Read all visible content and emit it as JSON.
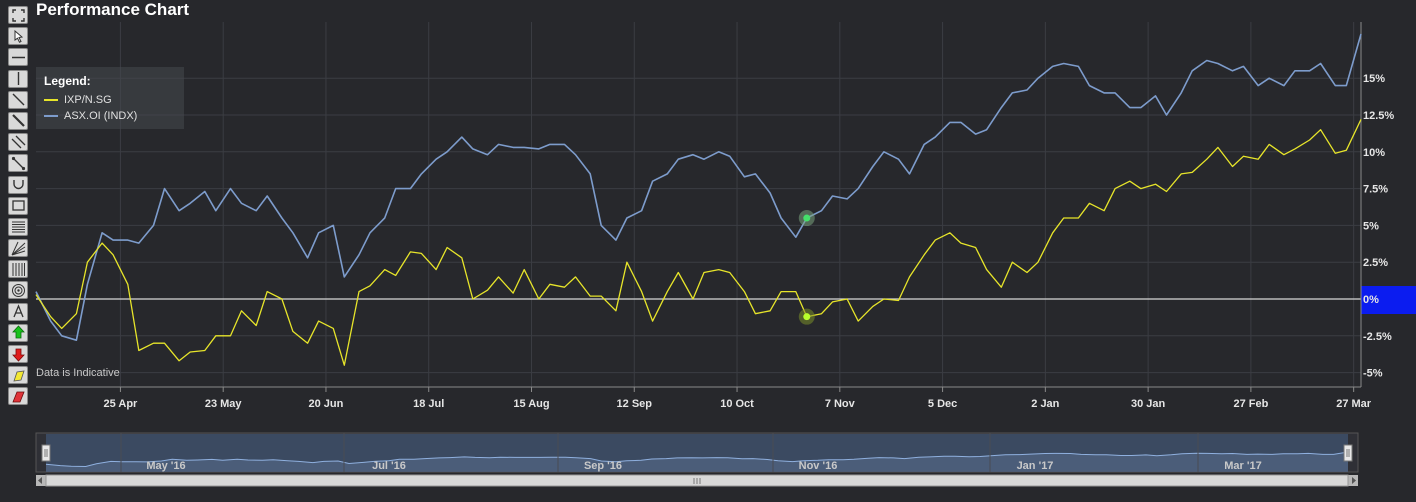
{
  "title": "Performance Chart",
  "note": "Data is Indicative",
  "toolbar": [
    {
      "name": "fullscreen-icon"
    },
    {
      "name": "pointer-icon"
    },
    {
      "name": "horizontal-line-icon"
    },
    {
      "name": "vertical-line-icon"
    },
    {
      "name": "trend-line-icon"
    },
    {
      "name": "ray-line-icon"
    },
    {
      "name": "parallel-lines-icon"
    },
    {
      "name": "segment-icon"
    },
    {
      "name": "arc-icon"
    },
    {
      "name": "rectangle-icon"
    },
    {
      "name": "fibonacci-retracement-icon"
    },
    {
      "name": "fan-icon"
    },
    {
      "name": "time-zones-icon"
    },
    {
      "name": "circles-icon"
    },
    {
      "name": "text-icon"
    },
    {
      "name": "arrow-up-icon"
    },
    {
      "name": "arrow-down-icon"
    },
    {
      "name": "highlighter-icon"
    },
    {
      "name": "eraser-icon"
    }
  ],
  "colors": {
    "ixp": "#e7e52a",
    "asx": "#7d9ccc",
    "zero_label_bg": "#0b1cf0",
    "navigator_fill": "#3d4e66"
  },
  "chart_data": {
    "type": "line",
    "legend_title": "Legend:",
    "legend_position": "top-left",
    "grid": true,
    "x_ticks": [
      "25 Apr",
      "23 May",
      "20 Jun",
      "18 Jul",
      "15 Aug",
      "12 Sep",
      "10 Oct",
      "7 Nov",
      "5 Dec",
      "2 Jan",
      "30 Jan",
      "27 Feb",
      "27 Mar"
    ],
    "y_ticks": [
      "15%",
      "12.5%",
      "10%",
      "7.5%",
      "5%",
      "2.5%",
      "0%",
      "-2.5%",
      "-5%"
    ],
    "y_tick_values": [
      15,
      12.5,
      10,
      7.5,
      5,
      2.5,
      0,
      -2.5,
      -5
    ],
    "ylim": [
      -5.5,
      18
    ],
    "x_range": [
      "2 Apr 2016",
      "29 Mar 2017"
    ],
    "navigator_labels": [
      "May '16",
      "Jul '16",
      "Sep '16",
      "Nov '16",
      "Jan '17",
      "Mar '17"
    ],
    "series": [
      {
        "name": "IXP/N.SG",
        "x": [
          "2 Apr",
          "6 Apr",
          "9 Apr",
          "13 Apr",
          "16 Apr",
          "20 Apr",
          "23 Apr",
          "27 Apr",
          "30 Apr",
          "4 May",
          "7 May",
          "11 May",
          "14 May",
          "18 May",
          "21 May",
          "25 May",
          "28 May",
          "1 Jun",
          "4 Jun",
          "8 Jun",
          "11 Jun",
          "15 Jun",
          "18 Jun",
          "22 Jun",
          "25 Jun",
          "29 Jun",
          "2 Jul",
          "6 Jul",
          "9 Jul",
          "13 Jul",
          "16 Jul",
          "20 Jul",
          "23 Jul",
          "27 Jul",
          "30 Jul",
          "3 Aug",
          "6 Aug",
          "10 Aug",
          "13 Aug",
          "17 Aug",
          "20 Aug",
          "24 Aug",
          "27 Aug",
          "31 Aug",
          "3 Sep",
          "7 Sep",
          "10 Sep",
          "14 Sep",
          "17 Sep",
          "21 Sep",
          "24 Sep",
          "28 Sep",
          "1 Oct",
          "5 Oct",
          "8 Oct",
          "12 Oct",
          "15 Oct",
          "19 Oct",
          "22 Oct",
          "26 Oct",
          "29 Oct",
          "2 Nov",
          "5 Nov",
          "9 Nov",
          "12 Nov",
          "16 Nov",
          "19 Nov",
          "23 Nov",
          "26 Nov",
          "30 Nov",
          "3 Dec",
          "7 Dec",
          "10 Dec",
          "14 Dec",
          "17 Dec",
          "21 Dec",
          "24 Dec",
          "28 Dec",
          "31 Dec",
          "4 Jan",
          "7 Jan",
          "11 Jan",
          "14 Jan",
          "18 Jan",
          "21 Jan",
          "25 Jan",
          "28 Jan",
          "1 Feb",
          "4 Feb",
          "8 Feb",
          "11 Feb",
          "15 Feb",
          "18 Feb",
          "22 Feb",
          "25 Feb",
          "1 Mar",
          "4 Mar",
          "8 Mar",
          "11 Mar",
          "15 Mar",
          "18 Mar",
          "22 Mar",
          "25 Mar",
          "29 Mar"
        ],
        "values": [
          0.3,
          -1.2,
          -2.0,
          -1.0,
          2.5,
          3.8,
          3.0,
          1.0,
          -3.5,
          -3.0,
          -3.0,
          -4.2,
          -3.6,
          -3.5,
          -2.5,
          -2.5,
          -0.8,
          -1.8,
          0.5,
          0.0,
          -2.2,
          -3.0,
          -1.5,
          -2.0,
          -4.5,
          0.5,
          0.9,
          2.0,
          1.6,
          3.2,
          3.1,
          2.0,
          3.5,
          2.8,
          0.0,
          0.6,
          1.5,
          0.4,
          2.0,
          0.0,
          1.0,
          0.8,
          1.5,
          0.2,
          0.2,
          -0.8,
          2.5,
          0.5,
          -1.5,
          0.5,
          1.8,
          0.0,
          1.8,
          2.0,
          1.8,
          0.5,
          -1.0,
          -0.8,
          0.5,
          0.5,
          -1.2,
          -1.0,
          -0.2,
          0.0,
          -1.5,
          -0.5,
          0.0,
          -0.1,
          1.5,
          3.0,
          4.0,
          4.5,
          3.8,
          3.5,
          2.0,
          0.8,
          2.5,
          1.8,
          2.5,
          4.5,
          5.5,
          5.5,
          6.5,
          6.0,
          7.5,
          8.0,
          7.5,
          7.8,
          7.3,
          8.5,
          8.6,
          9.5,
          10.3,
          9.0,
          9.7,
          9.5,
          10.5,
          9.8,
          10.2,
          10.8,
          11.5,
          9.9,
          10.1,
          12.2
        ]
      },
      {
        "name": "ASX.OI (INDX)",
        "x": [
          "2 Apr",
          "6 Apr",
          "9 Apr",
          "13 Apr",
          "16 Apr",
          "20 Apr",
          "23 Apr",
          "27 Apr",
          "30 Apr",
          "4 May",
          "7 May",
          "11 May",
          "14 May",
          "18 May",
          "21 May",
          "25 May",
          "28 May",
          "1 Jun",
          "4 Jun",
          "8 Jun",
          "11 Jun",
          "15 Jun",
          "18 Jun",
          "22 Jun",
          "25 Jun",
          "29 Jun",
          "2 Jul",
          "6 Jul",
          "9 Jul",
          "13 Jul",
          "16 Jul",
          "20 Jul",
          "23 Jul",
          "27 Jul",
          "30 Jul",
          "3 Aug",
          "6 Aug",
          "10 Aug",
          "13 Aug",
          "17 Aug",
          "20 Aug",
          "24 Aug",
          "27 Aug",
          "31 Aug",
          "3 Sep",
          "7 Sep",
          "10 Sep",
          "14 Sep",
          "17 Sep",
          "21 Sep",
          "24 Sep",
          "28 Sep",
          "1 Oct",
          "5 Oct",
          "8 Oct",
          "12 Oct",
          "15 Oct",
          "19 Oct",
          "22 Oct",
          "26 Oct",
          "29 Oct",
          "2 Nov",
          "5 Nov",
          "9 Nov",
          "12 Nov",
          "16 Nov",
          "19 Nov",
          "23 Nov",
          "26 Nov",
          "30 Nov",
          "3 Dec",
          "7 Dec",
          "10 Dec",
          "14 Dec",
          "17 Dec",
          "21 Dec",
          "24 Dec",
          "28 Dec",
          "31 Dec",
          "4 Jan",
          "7 Jan",
          "11 Jan",
          "14 Jan",
          "18 Jan",
          "21 Jan",
          "25 Jan",
          "28 Jan",
          "1 Feb",
          "4 Feb",
          "8 Feb",
          "11 Feb",
          "15 Feb",
          "18 Feb",
          "22 Feb",
          "25 Feb",
          "1 Mar",
          "4 Mar",
          "8 Mar",
          "11 Mar",
          "15 Mar",
          "18 Mar",
          "22 Mar",
          "25 Mar",
          "29 Mar"
        ],
        "values": [
          0.5,
          -1.5,
          -2.5,
          -2.8,
          1.0,
          4.5,
          4.0,
          4.0,
          3.8,
          5.0,
          7.5,
          6.0,
          6.5,
          7.3,
          6.0,
          7.5,
          6.5,
          6.0,
          7.0,
          5.5,
          4.5,
          2.8,
          4.5,
          5.0,
          1.5,
          3.0,
          4.5,
          5.5,
          7.5,
          7.5,
          8.5,
          9.5,
          10.0,
          11.0,
          10.2,
          9.8,
          10.5,
          10.3,
          10.3,
          10.2,
          10.5,
          10.5,
          9.8,
          8.5,
          5.0,
          4.0,
          5.5,
          6.0,
          8.0,
          8.5,
          9.5,
          9.8,
          9.5,
          10.0,
          9.7,
          8.3,
          8.5,
          7.2,
          5.5,
          4.2,
          5.5,
          6.0,
          7.0,
          6.8,
          7.5,
          9.0,
          10.0,
          9.5,
          8.5,
          10.5,
          11.0,
          12.0,
          12.0,
          11.2,
          11.5,
          13.0,
          14.0,
          14.2,
          15.0,
          15.8,
          16.0,
          15.8,
          14.5,
          14.0,
          14.0,
          13.0,
          13.0,
          13.8,
          12.5,
          14.0,
          15.5,
          16.2,
          16.0,
          15.5,
          15.8,
          14.5,
          15.0,
          14.5,
          15.5,
          15.5,
          16.0,
          14.5,
          14.5,
          18.0
        ]
      }
    ]
  }
}
